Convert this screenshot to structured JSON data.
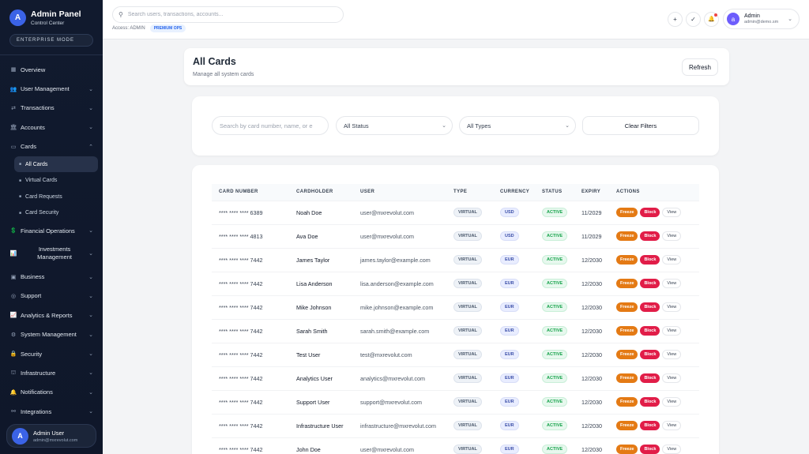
{
  "sidebar": {
    "logo_letter": "A",
    "title": "Admin Panel",
    "subtitle": "Control Center",
    "mode_badge": "ENTERPRISE MODE",
    "nav": [
      {
        "icon": "▦",
        "label": "Overview"
      },
      {
        "icon": "👥",
        "label": "User Management"
      },
      {
        "icon": "⇄",
        "label": "Transactions"
      },
      {
        "icon": "🏛",
        "label": "Accounts"
      },
      {
        "icon": "▭",
        "label": "Cards"
      },
      {
        "icon": "💲",
        "label": "Financial Operations"
      },
      {
        "icon": "📊",
        "label": "Investments Management"
      },
      {
        "icon": "▣",
        "label": "Business"
      },
      {
        "icon": "◎",
        "label": "Support"
      },
      {
        "icon": "📈",
        "label": "Analytics & Reports"
      },
      {
        "icon": "⚙",
        "label": "System Management"
      },
      {
        "icon": "🔒",
        "label": "Security"
      },
      {
        "icon": "⛫",
        "label": "Infrastructure"
      },
      {
        "icon": "🔔",
        "label": "Notifications"
      },
      {
        "icon": "⚯",
        "label": "Integrations"
      }
    ],
    "cards_sub": [
      {
        "label": "All Cards",
        "active": true
      },
      {
        "label": "Virtual Cards",
        "active": false
      },
      {
        "label": "Card Requests",
        "active": false
      },
      {
        "label": "Card Security",
        "active": false
      }
    ],
    "user": {
      "initial": "A",
      "name": "Admin User",
      "email": "admin@mxrevolut.com"
    }
  },
  "topbar": {
    "search_placeholder": "Search users, transactions, accounts...",
    "access_label": "Access: ADMIN",
    "premium_badge": "PREMIUM OPS",
    "plus_icon": "+",
    "check_icon": "✓",
    "bell_icon": "🔔",
    "admin": {
      "initial": "a",
      "name": "Admin",
      "email": "admin@demo.sm"
    }
  },
  "page": {
    "title": "All Cards",
    "subtitle": "Manage all system cards",
    "refresh_label": "Refresh"
  },
  "filters": {
    "search_placeholder": "Search by card number, name, or e",
    "status_value": "All Status",
    "type_value": "All Types",
    "clear_label": "Clear Filters"
  },
  "table": {
    "headers": [
      "CARD NUMBER",
      "CARDHOLDER",
      "USER",
      "TYPE",
      "CURRENCY",
      "STATUS",
      "EXPIRY",
      "ACTIONS"
    ],
    "action_labels": {
      "freeze": "Freeze",
      "block": "Block",
      "view": "View"
    },
    "rows": [
      {
        "number": "**** **** **** 6389",
        "holder": "Noah Doe",
        "user": "user@mxrevolut.com",
        "type": "VIRTUAL",
        "currency": "USD",
        "status": "ACTIVE",
        "expiry": "11/2029"
      },
      {
        "number": "**** **** **** 4813",
        "holder": "Ava Doe",
        "user": "user@mxrevolut.com",
        "type": "VIRTUAL",
        "currency": "USD",
        "status": "ACTIVE",
        "expiry": "11/2029"
      },
      {
        "number": "**** **** **** 7442",
        "holder": "James Taylor",
        "user": "james.taylor@example.com",
        "type": "VIRTUAL",
        "currency": "EUR",
        "status": "ACTIVE",
        "expiry": "12/2030"
      },
      {
        "number": "**** **** **** 7442",
        "holder": "Lisa Anderson",
        "user": "lisa.anderson@example.com",
        "type": "VIRTUAL",
        "currency": "EUR",
        "status": "ACTIVE",
        "expiry": "12/2030"
      },
      {
        "number": "**** **** **** 7442",
        "holder": "Mike Johnson",
        "user": "mike.johnson@example.com",
        "type": "VIRTUAL",
        "currency": "EUR",
        "status": "ACTIVE",
        "expiry": "12/2030"
      },
      {
        "number": "**** **** **** 7442",
        "holder": "Sarah Smith",
        "user": "sarah.smith@example.com",
        "type": "VIRTUAL",
        "currency": "EUR",
        "status": "ACTIVE",
        "expiry": "12/2030"
      },
      {
        "number": "**** **** **** 7442",
        "holder": "Test User",
        "user": "test@mxrevolut.com",
        "type": "VIRTUAL",
        "currency": "EUR",
        "status": "ACTIVE",
        "expiry": "12/2030"
      },
      {
        "number": "**** **** **** 7442",
        "holder": "Analytics User",
        "user": "analytics@mxrevolut.com",
        "type": "VIRTUAL",
        "currency": "EUR",
        "status": "ACTIVE",
        "expiry": "12/2030"
      },
      {
        "number": "**** **** **** 7442",
        "holder": "Support User",
        "user": "support@mxrevolut.com",
        "type": "VIRTUAL",
        "currency": "EUR",
        "status": "ACTIVE",
        "expiry": "12/2030"
      },
      {
        "number": "**** **** **** 7442",
        "holder": "Infrastructure User",
        "user": "infrastructure@mxrevolut.com",
        "type": "VIRTUAL",
        "currency": "EUR",
        "status": "ACTIVE",
        "expiry": "12/2030"
      },
      {
        "number": "**** **** **** 7442",
        "holder": "John Doe",
        "user": "user@mxrevolut.com",
        "type": "VIRTUAL",
        "currency": "EUR",
        "status": "ACTIVE",
        "expiry": "12/2030"
      }
    ]
  }
}
